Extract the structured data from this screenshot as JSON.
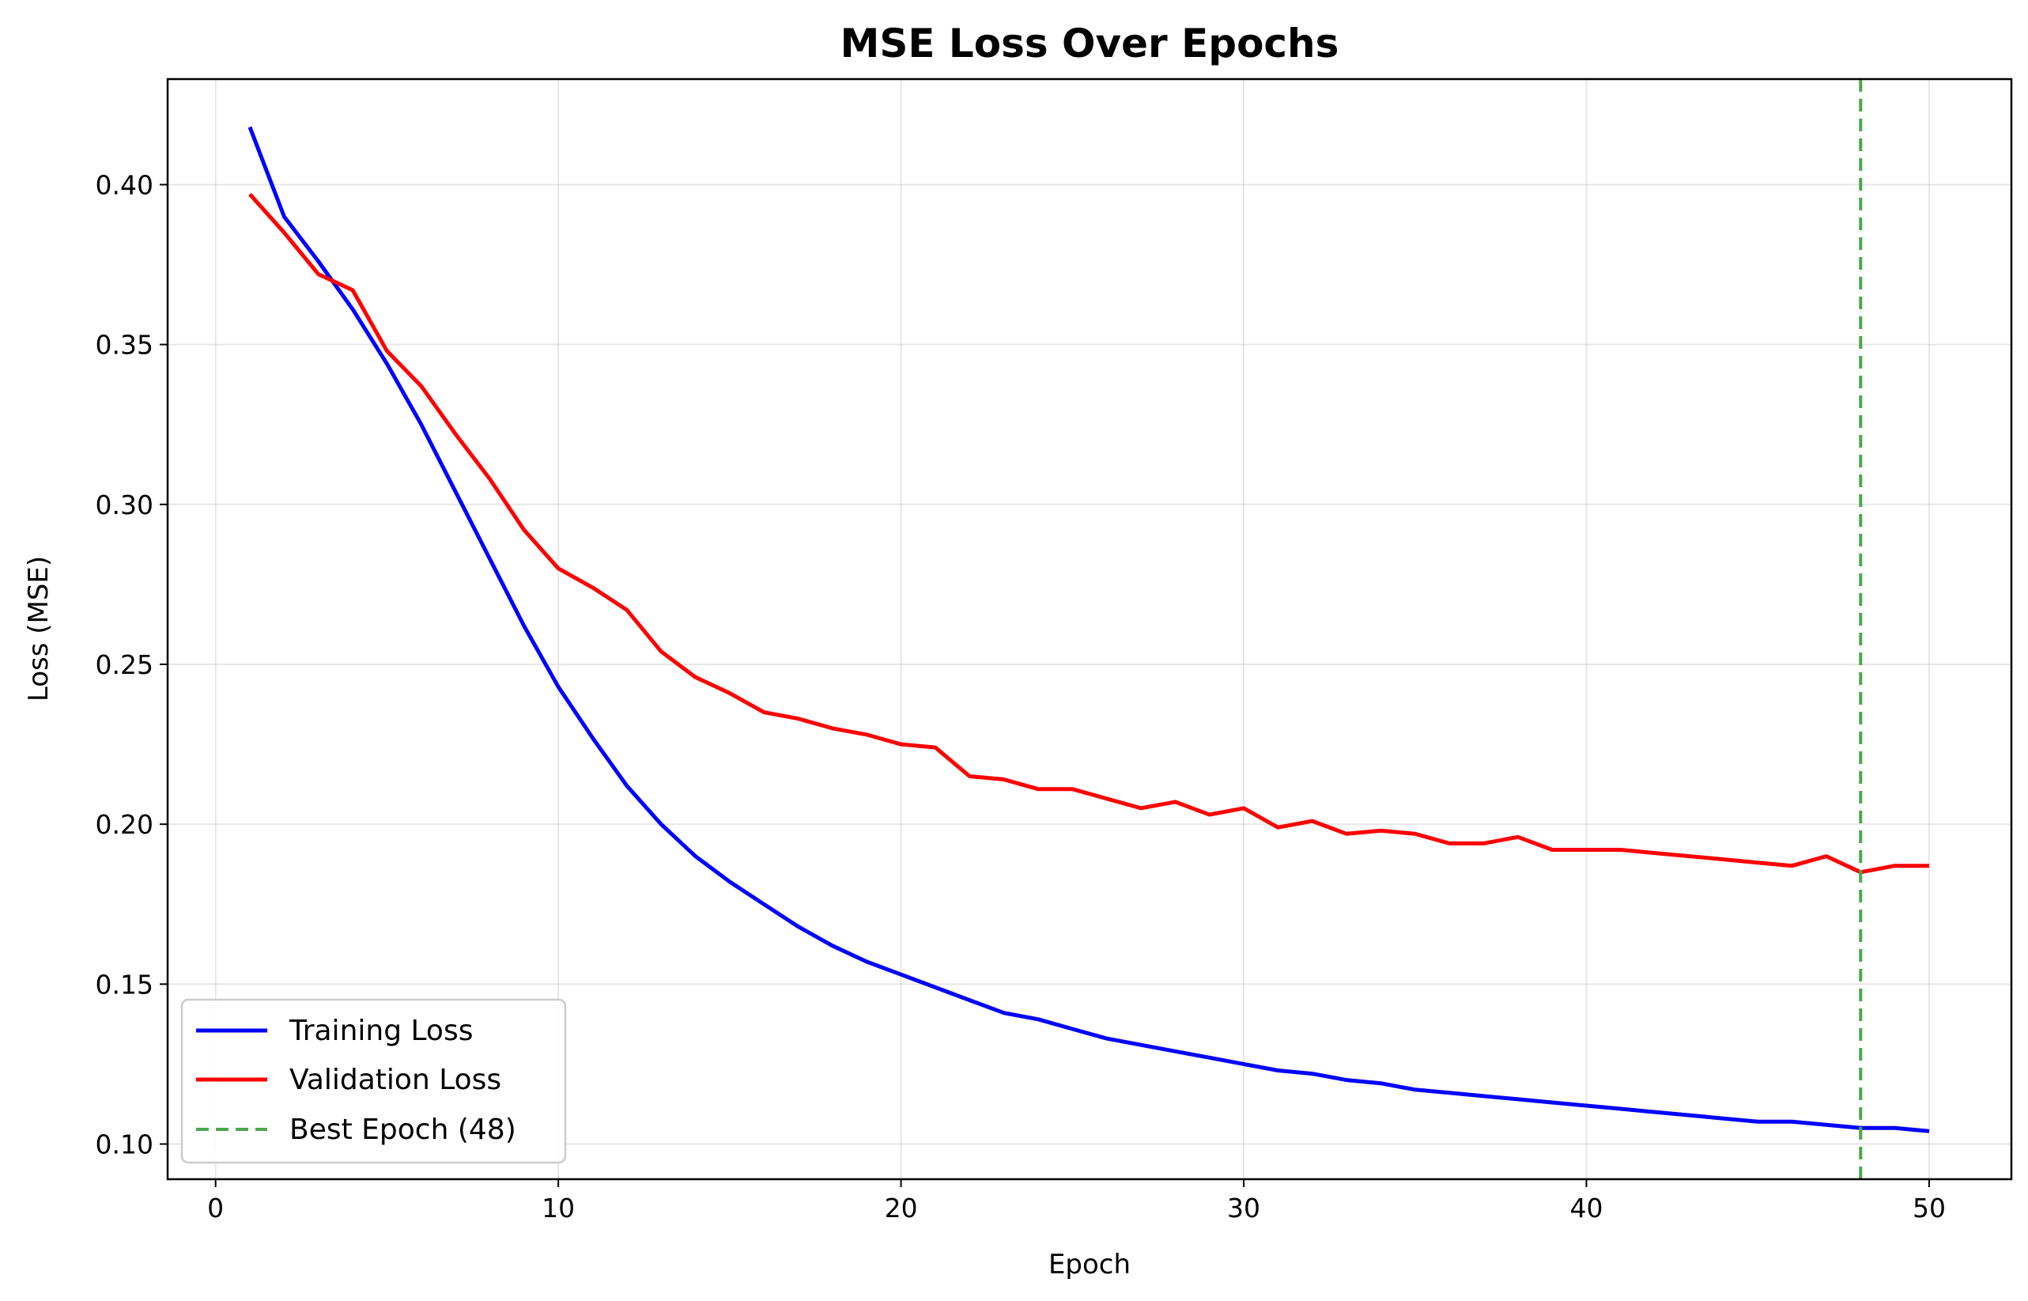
{
  "chart_data": {
    "type": "line",
    "title": "MSE Loss Over Epochs",
    "xlabel": "Epoch",
    "ylabel": "Loss (MSE)",
    "xlim": [
      -1.4,
      52.4
    ],
    "ylim": [
      0.089,
      0.433
    ],
    "xticks": [
      0,
      10,
      20,
      30,
      40,
      50
    ],
    "xtick_labels": [
      "0",
      "10",
      "20",
      "30",
      "40",
      "50"
    ],
    "yticks": [
      0.1,
      0.15,
      0.2,
      0.25,
      0.3,
      0.35,
      0.4
    ],
    "ytick_labels": [
      "0.10",
      "0.15",
      "0.20",
      "0.25",
      "0.30",
      "0.35",
      "0.40"
    ],
    "grid": true,
    "legend_position": "lower-left",
    "x": [
      1,
      2,
      3,
      4,
      5,
      6,
      7,
      8,
      9,
      10,
      11,
      12,
      13,
      14,
      15,
      16,
      17,
      18,
      19,
      20,
      21,
      22,
      23,
      24,
      25,
      26,
      27,
      28,
      29,
      30,
      31,
      32,
      33,
      34,
      35,
      36,
      37,
      38,
      39,
      40,
      41,
      42,
      43,
      44,
      45,
      46,
      47,
      48,
      49,
      50
    ],
    "series": [
      {
        "name": "Training Loss",
        "color": "#0000ff",
        "style": "solid",
        "values": [
          0.418,
          0.39,
          0.376,
          0.361,
          0.344,
          0.325,
          0.304,
          0.283,
          0.262,
          0.243,
          0.227,
          0.212,
          0.2,
          0.19,
          0.182,
          0.175,
          0.168,
          0.162,
          0.157,
          0.153,
          0.149,
          0.145,
          0.141,
          0.139,
          0.136,
          0.133,
          0.131,
          0.129,
          0.127,
          0.125,
          0.123,
          0.122,
          0.12,
          0.119,
          0.117,
          0.116,
          0.115,
          0.114,
          0.113,
          0.112,
          0.111,
          0.11,
          0.109,
          0.108,
          0.107,
          0.107,
          0.106,
          0.105,
          0.105,
          0.104
        ]
      },
      {
        "name": "Validation Loss",
        "color": "#ff0000",
        "style": "solid",
        "values": [
          0.397,
          0.385,
          0.372,
          0.367,
          0.348,
          0.337,
          0.322,
          0.308,
          0.292,
          0.28,
          0.274,
          0.267,
          0.254,
          0.246,
          0.241,
          0.235,
          0.233,
          0.23,
          0.228,
          0.225,
          0.224,
          0.215,
          0.214,
          0.211,
          0.211,
          0.208,
          0.205,
          0.207,
          0.203,
          0.205,
          0.199,
          0.201,
          0.197,
          0.198,
          0.197,
          0.194,
          0.194,
          0.196,
          0.192,
          0.192,
          0.192,
          0.191,
          0.19,
          0.189,
          0.188,
          0.187,
          0.19,
          0.185,
          0.187,
          0.187
        ]
      }
    ],
    "vline": {
      "name": "Best Epoch (48)",
      "x": 48,
      "color": "#4ca64c",
      "style": "dashed"
    }
  }
}
